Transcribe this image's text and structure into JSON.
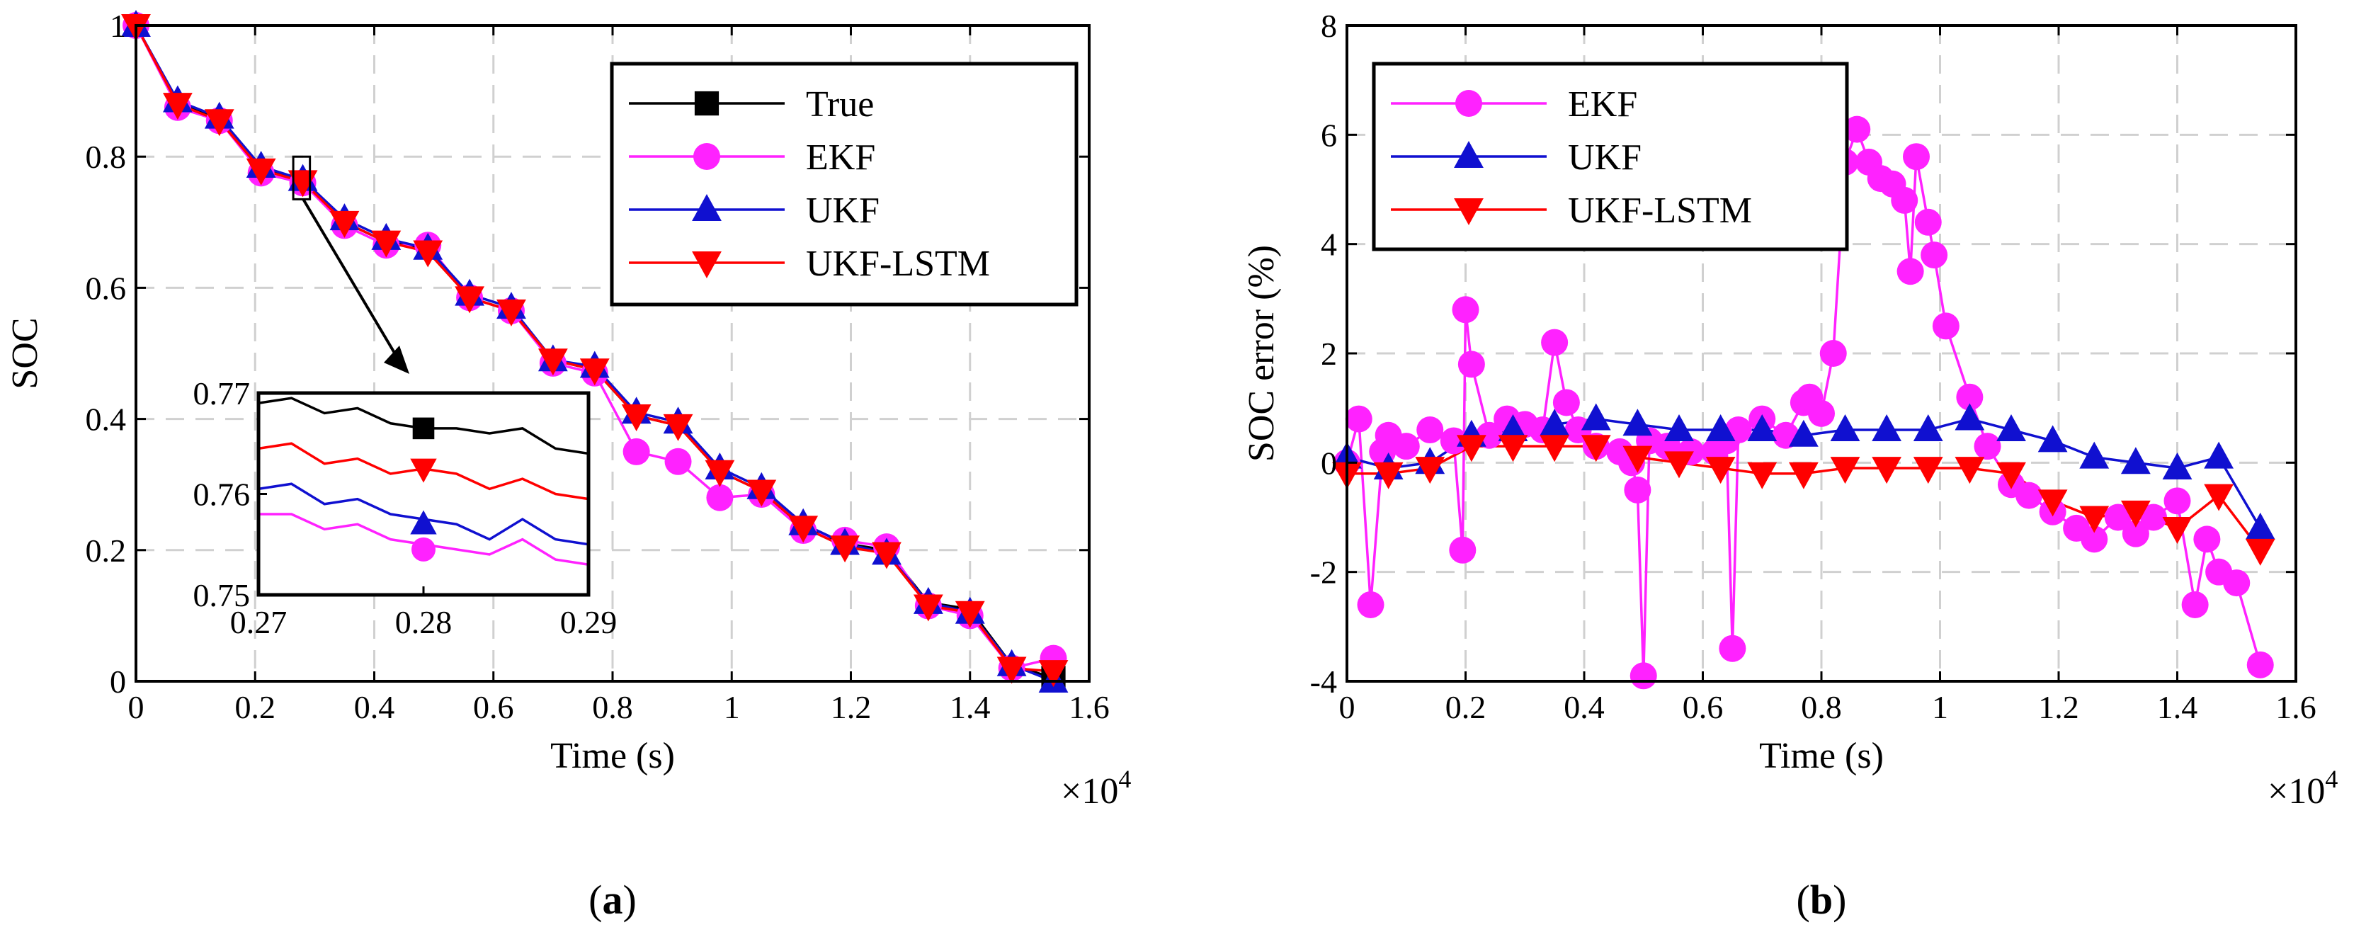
{
  "chart_data": [
    {
      "type": "line",
      "panel_label": "a",
      "xlabel": "Time (s)",
      "ylabel": "SOC",
      "x_multiplier_label": "×10",
      "x_multiplier_exp": "4",
      "xlim": [
        0,
        1.6
      ],
      "ylim": [
        0,
        1
      ],
      "x_ticks": [
        "0",
        "0.2",
        "0.4",
        "0.6",
        "0.8",
        "1",
        "1.2",
        "1.4",
        "1.6"
      ],
      "y_ticks": [
        "0",
        "0.2",
        "0.4",
        "0.6",
        "0.8",
        "1"
      ],
      "grid": true,
      "legend_position": "top-right",
      "legend": [
        "True",
        "EKF",
        "UKF",
        "UKF-LSTM"
      ],
      "series": [
        {
          "name": "True",
          "color": "#000000",
          "marker": "square",
          "x": [
            0,
            0.07,
            0.14,
            0.21,
            0.28,
            0.35,
            0.42,
            0.49,
            0.56,
            0.63,
            0.7,
            0.77,
            0.84,
            0.91,
            0.98,
            1.05,
            1.12,
            1.19,
            1.26,
            1.33,
            1.4,
            1.47,
            1.54
          ],
          "y": [
            1.0,
            0.88,
            0.86,
            0.78,
            0.765,
            0.7,
            0.67,
            0.66,
            0.585,
            0.565,
            0.49,
            0.475,
            0.405,
            0.39,
            0.32,
            0.29,
            0.235,
            0.21,
            0.2,
            0.12,
            0.11,
            0.025,
            0.005
          ]
        },
        {
          "name": "EKF",
          "color": "#ff22ff",
          "marker": "circle",
          "x": [
            0,
            0.07,
            0.14,
            0.21,
            0.28,
            0.35,
            0.42,
            0.49,
            0.56,
            0.63,
            0.7,
            0.77,
            0.84,
            0.91,
            0.98,
            1.05,
            1.12,
            1.19,
            1.26,
            1.33,
            1.4,
            1.47,
            1.54
          ],
          "y": [
            1.0,
            0.875,
            0.855,
            0.775,
            0.76,
            0.695,
            0.665,
            0.665,
            0.585,
            0.565,
            0.485,
            0.47,
            0.35,
            0.335,
            0.28,
            0.285,
            0.23,
            0.215,
            0.205,
            0.115,
            0.1,
            0.02,
            0.035
          ]
        },
        {
          "name": "UKF",
          "color": "#1010d0",
          "marker": "triangle-up",
          "x": [
            0,
            0.07,
            0.14,
            0.21,
            0.28,
            0.35,
            0.42,
            0.49,
            0.56,
            0.63,
            0.7,
            0.77,
            0.84,
            0.91,
            0.98,
            1.05,
            1.12,
            1.19,
            1.26,
            1.33,
            1.4,
            1.47,
            1.54
          ],
          "y": [
            1.0,
            0.885,
            0.86,
            0.785,
            0.765,
            0.705,
            0.675,
            0.66,
            0.59,
            0.57,
            0.49,
            0.48,
            0.41,
            0.395,
            0.325,
            0.295,
            0.24,
            0.21,
            0.195,
            0.12,
            0.105,
            0.025,
            0.0
          ]
        },
        {
          "name": "UKF-LSTM",
          "color": "#ff0000",
          "marker": "triangle-down",
          "x": [
            0,
            0.07,
            0.14,
            0.21,
            0.28,
            0.35,
            0.42,
            0.49,
            0.56,
            0.63,
            0.7,
            0.77,
            0.84,
            0.91,
            0.98,
            1.05,
            1.12,
            1.19,
            1.26,
            1.33,
            1.4,
            1.47,
            1.54
          ],
          "y": [
            1.0,
            0.88,
            0.855,
            0.78,
            0.762,
            0.7,
            0.67,
            0.655,
            0.585,
            0.565,
            0.49,
            0.475,
            0.405,
            0.39,
            0.32,
            0.29,
            0.235,
            0.205,
            0.195,
            0.115,
            0.105,
            0.02,
            0.015
          ]
        }
      ],
      "inset": {
        "xlim": [
          0.27,
          0.29
        ],
        "ylim": [
          0.75,
          0.77
        ],
        "x_ticks": [
          "0.27",
          "0.28",
          "0.29"
        ],
        "y_ticks": [
          "0.75",
          "0.76",
          "0.77"
        ],
        "series": [
          {
            "name": "True",
            "x": [
              0.27,
              0.272,
              0.274,
              0.276,
              0.278,
              0.28,
              0.282,
              0.284,
              0.286,
              0.288,
              0.29
            ],
            "y": [
              0.769,
              0.7695,
              0.768,
              0.7685,
              0.767,
              0.7665,
              0.7665,
              0.766,
              0.7665,
              0.7645,
              0.764
            ]
          },
          {
            "name": "EKF",
            "x": [
              0.27,
              0.272,
              0.274,
              0.276,
              0.278,
              0.28,
              0.282,
              0.284,
              0.286,
              0.288,
              0.29
            ],
            "y": [
              0.758,
              0.758,
              0.7565,
              0.757,
              0.7555,
              0.755,
              0.7545,
              0.754,
              0.7555,
              0.7535,
              0.753
            ]
          },
          {
            "name": "UKF",
            "x": [
              0.27,
              0.272,
              0.274,
              0.276,
              0.278,
              0.28,
              0.282,
              0.284,
              0.286,
              0.288,
              0.29
            ],
            "y": [
              0.7605,
              0.761,
              0.759,
              0.7595,
              0.758,
              0.7575,
              0.757,
              0.7555,
              0.7575,
              0.7555,
              0.755
            ]
          },
          {
            "name": "UKF-LSTM",
            "x": [
              0.27,
              0.272,
              0.274,
              0.276,
              0.278,
              0.28,
              0.282,
              0.284,
              0.286,
              0.288,
              0.29
            ],
            "y": [
              0.7645,
              0.765,
              0.763,
              0.7635,
              0.762,
              0.7625,
              0.762,
              0.7605,
              0.7615,
              0.76,
              0.7595
            ]
          }
        ],
        "markers": [
          {
            "name": "True",
            "x": 0.28,
            "y": 0.7665
          },
          {
            "name": "UKF-LSTM",
            "x": 0.28,
            "y": 0.7625
          },
          {
            "name": "UKF",
            "x": 0.28,
            "y": 0.757
          },
          {
            "name": "EKF",
            "x": 0.28,
            "y": 0.7545
          }
        ]
      }
    },
    {
      "type": "line",
      "panel_label": "b",
      "xlabel": "Time (s)",
      "ylabel": "SOC error (%)",
      "x_multiplier_label": "×10",
      "x_multiplier_exp": "4",
      "xlim": [
        0,
        1.6
      ],
      "ylim": [
        -4,
        8
      ],
      "x_ticks": [
        "0",
        "0.2",
        "0.4",
        "0.6",
        "0.8",
        "1",
        "1.2",
        "1.4",
        "1.6"
      ],
      "y_ticks": [
        "-4",
        "-2",
        "0",
        "2",
        "4",
        "6",
        "8"
      ],
      "grid": true,
      "legend_position": "top-left",
      "legend": [
        "EKF",
        "UKF",
        "UKF-LSTM"
      ],
      "series": [
        {
          "name": "EKF",
          "color": "#ff22ff",
          "marker": "circle",
          "x": [
            0,
            0.02,
            0.04,
            0.06,
            0.07,
            0.1,
            0.14,
            0.18,
            0.195,
            0.2,
            0.21,
            0.24,
            0.27,
            0.3,
            0.33,
            0.35,
            0.37,
            0.39,
            0.42,
            0.46,
            0.48,
            0.49,
            0.5,
            0.51,
            0.54,
            0.58,
            0.62,
            0.64,
            0.65,
            0.66,
            0.7,
            0.74,
            0.77,
            0.78,
            0.8,
            0.82,
            0.84,
            0.86,
            0.88,
            0.9,
            0.92,
            0.94,
            0.95,
            0.96,
            0.98,
            0.99,
            1.01,
            1.05,
            1.08,
            1.12,
            1.15,
            1.19,
            1.23,
            1.26,
            1.3,
            1.33,
            1.36,
            1.4,
            1.43,
            1.45,
            1.47,
            1.5,
            1.54
          ],
          "y": [
            0.0,
            0.8,
            -2.6,
            0.2,
            0.5,
            0.3,
            0.6,
            0.4,
            -1.6,
            2.8,
            1.8,
            0.5,
            0.8,
            0.7,
            0.6,
            2.2,
            1.1,
            0.6,
            0.3,
            0.2,
            0.0,
            -0.5,
            -3.9,
            0.4,
            0.3,
            0.2,
            0.2,
            0.4,
            -3.4,
            0.6,
            0.8,
            0.5,
            1.1,
            1.2,
            0.9,
            2.0,
            5.5,
            6.1,
            5.5,
            5.2,
            5.1,
            4.8,
            3.5,
            5.6,
            4.4,
            3.8,
            2.5,
            1.2,
            0.3,
            -0.4,
            -0.6,
            -0.9,
            -1.2,
            -1.4,
            -1.0,
            -1.3,
            -1.0,
            -0.7,
            -2.6,
            -1.4,
            -2.0,
            -2.2,
            -3.7
          ]
        },
        {
          "name": "UKF",
          "color": "#1010d0",
          "marker": "triangle-up",
          "x": [
            0,
            0.07,
            0.14,
            0.21,
            0.28,
            0.35,
            0.42,
            0.49,
            0.56,
            0.63,
            0.7,
            0.77,
            0.84,
            0.91,
            0.98,
            1.05,
            1.12,
            1.19,
            1.26,
            1.33,
            1.4,
            1.47,
            1.54
          ],
          "y": [
            0.1,
            -0.1,
            0.0,
            0.5,
            0.6,
            0.7,
            0.8,
            0.7,
            0.6,
            0.6,
            0.6,
            0.5,
            0.6,
            0.6,
            0.6,
            0.8,
            0.6,
            0.4,
            0.1,
            0.0,
            -0.1,
            0.1,
            -1.2
          ]
        },
        {
          "name": "UKF-LSTM",
          "color": "#ff0000",
          "marker": "triangle-down",
          "x": [
            0,
            0.07,
            0.14,
            0.21,
            0.28,
            0.35,
            0.42,
            0.49,
            0.56,
            0.63,
            0.7,
            0.77,
            0.84,
            0.91,
            0.98,
            1.05,
            1.12,
            1.19,
            1.26,
            1.33,
            1.4,
            1.47,
            1.54
          ],
          "y": [
            -0.2,
            -0.2,
            -0.1,
            0.3,
            0.3,
            0.3,
            0.3,
            0.1,
            0.0,
            -0.1,
            -0.2,
            -0.2,
            -0.1,
            -0.1,
            -0.1,
            -0.1,
            -0.2,
            -0.7,
            -1.0,
            -0.9,
            -1.2,
            -0.6,
            -1.6
          ]
        }
      ]
    }
  ]
}
